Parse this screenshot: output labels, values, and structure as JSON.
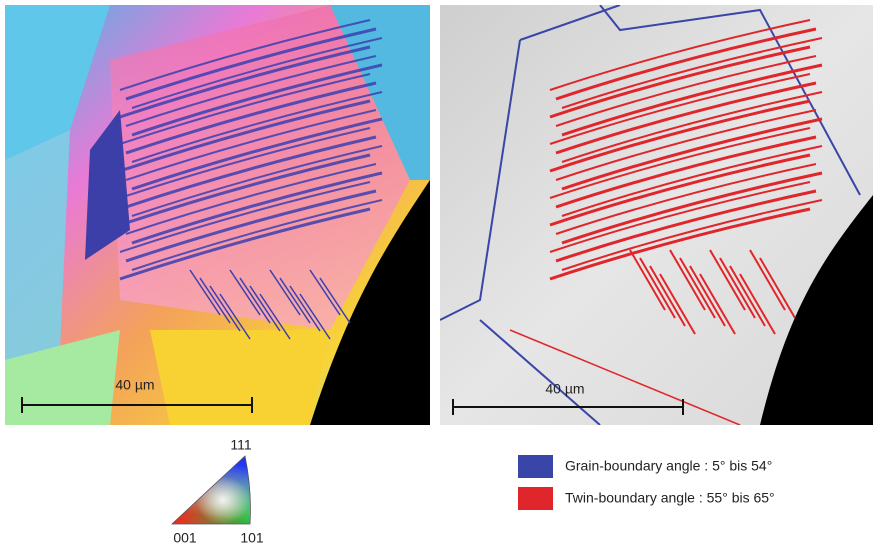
{
  "left_panel": {
    "scale_label": "40 µm"
  },
  "right_panel": {
    "scale_label": "40 µm"
  },
  "triangle": {
    "top_label": "111",
    "left_label": "001",
    "right_label": "101"
  },
  "legend": {
    "items": [
      {
        "label": "Grain-boundary angle : 5° bis 54°",
        "color": "#3a45a8"
      },
      {
        "label": "Twin-boundary angle : 55° bis 65°",
        "color": "#e0262a"
      }
    ]
  }
}
